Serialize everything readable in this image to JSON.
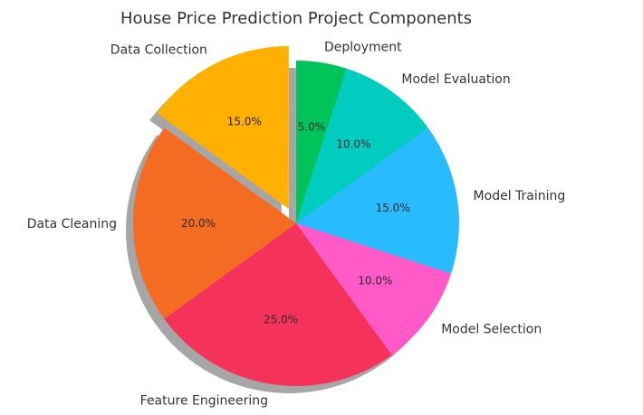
{
  "chart_data": {
    "type": "pie",
    "title": "House Price Prediction Project Components",
    "start_angle_deg": 90,
    "direction": "counterclockwise",
    "shadow": true,
    "slices": [
      {
        "label": "Data Collection",
        "value": 15,
        "percent_label": "15.0%",
        "color": "#ffb000",
        "explode": 0.1
      },
      {
        "label": "Data Cleaning",
        "value": 20,
        "percent_label": "20.0%",
        "color": "#f36c21",
        "explode": 0
      },
      {
        "label": "Feature Engineering",
        "value": 25,
        "percent_label": "25.0%",
        "color": "#f5335a",
        "explode": 0
      },
      {
        "label": "Model Selection",
        "value": 10,
        "percent_label": "10.0%",
        "color": "#ff5ac8",
        "explode": 0
      },
      {
        "label": "Model Training",
        "value": 15,
        "percent_label": "15.0%",
        "color": "#29bbff",
        "explode": 0
      },
      {
        "label": "Model Evaluation",
        "value": 10,
        "percent_label": "10.0%",
        "color": "#00ccc0",
        "explode": 0
      },
      {
        "label": "Deployment",
        "value": 5,
        "percent_label": "5.0%",
        "color": "#00c35a",
        "explode": 0
      }
    ]
  }
}
